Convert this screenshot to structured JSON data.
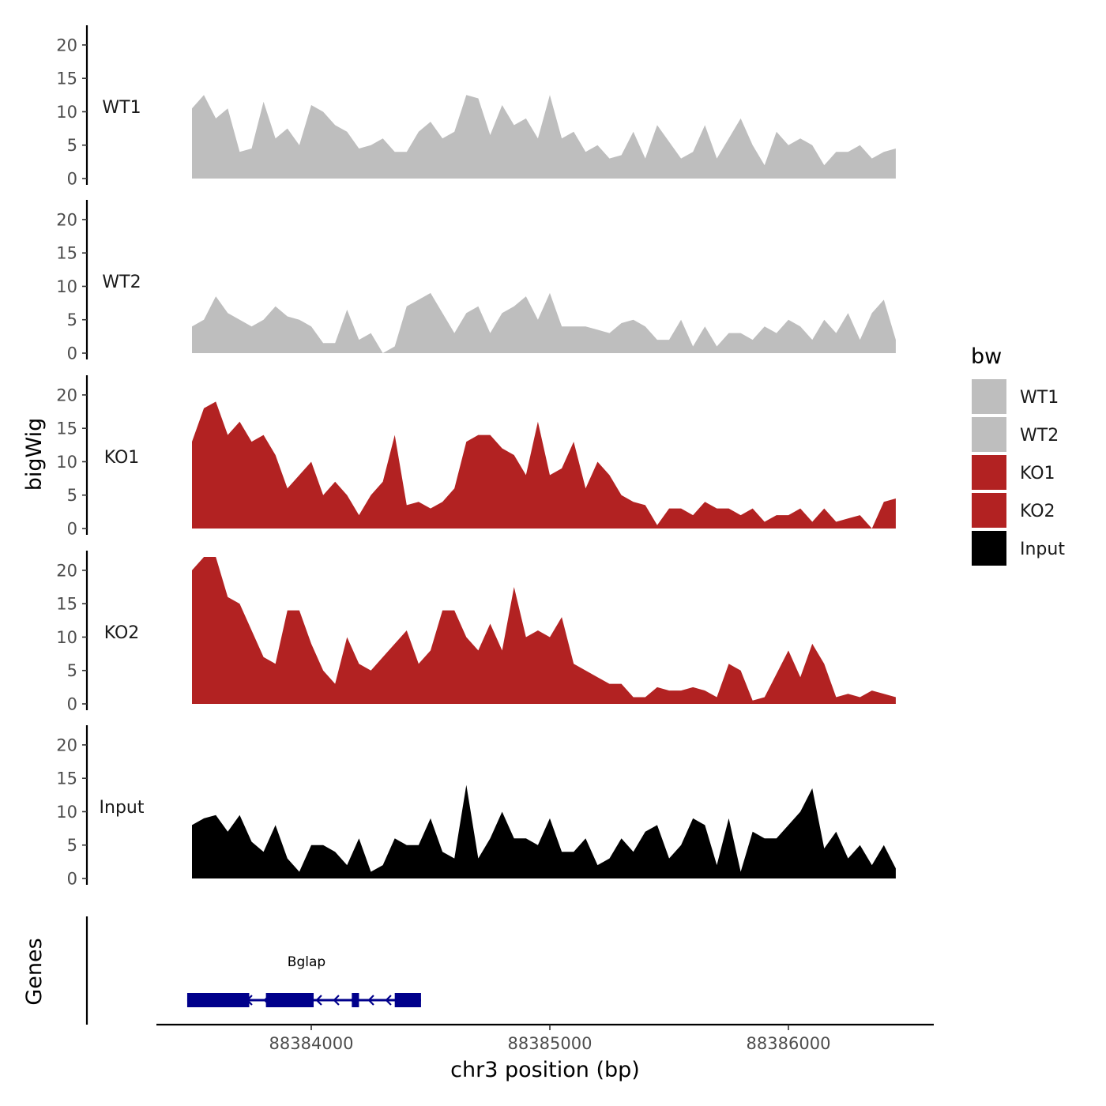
{
  "chart_data": {
    "type": "area",
    "xlabel": "chr3 position (bp)",
    "ylabel": "bigWig",
    "gene_track_label": "Genes",
    "x_range": [
      88383500,
      88386450
    ],
    "x_ticks": [
      {
        "value": 88384000,
        "label": "88384000"
      },
      {
        "value": 88385000,
        "label": "88385000"
      },
      {
        "value": 88386000,
        "label": "88386000"
      }
    ],
    "ylim": [
      0,
      22
    ],
    "y_ticks": [
      {
        "value": 0,
        "label": "0"
      },
      {
        "value": 5,
        "label": "5"
      },
      {
        "value": 10,
        "label": "10"
      },
      {
        "value": 15,
        "label": "15"
      },
      {
        "value": 20,
        "label": "20"
      }
    ],
    "x": [
      88383500,
      88383550,
      88383600,
      88383650,
      88383700,
      88383750,
      88383800,
      88383850,
      88383900,
      88383950,
      88384000,
      88384050,
      88384100,
      88384150,
      88384200,
      88384250,
      88384300,
      88384350,
      88384400,
      88384450,
      88384500,
      88384550,
      88384600,
      88384650,
      88384700,
      88384750,
      88384800,
      88384850,
      88384900,
      88384950,
      88385000,
      88385050,
      88385100,
      88385150,
      88385200,
      88385250,
      88385300,
      88385350,
      88385400,
      88385450,
      88385500,
      88385550,
      88385600,
      88385650,
      88385700,
      88385750,
      88385800,
      88385850,
      88385900,
      88385950,
      88386000,
      88386050,
      88386100,
      88386150,
      88386200,
      88386250,
      88386300,
      88386350,
      88386400,
      88386450
    ],
    "series": [
      {
        "name": "WT1",
        "color": "#bebebe",
        "values": [
          10.5,
          12.5,
          9,
          10.5,
          4,
          4.5,
          11.5,
          6,
          7.5,
          5,
          11,
          10,
          8,
          7,
          4.5,
          5,
          6,
          4,
          4,
          7,
          8.5,
          6,
          7,
          12.5,
          12,
          6.5,
          11,
          8,
          9,
          6,
          12.5,
          6,
          7,
          4,
          5,
          3,
          3.5,
          7,
          3,
          8,
          5.5,
          3,
          4,
          8,
          3,
          6,
          9,
          5,
          2,
          7,
          5,
          6,
          5,
          2,
          4,
          4,
          5,
          3,
          4,
          4.5
        ]
      },
      {
        "name": "WT2",
        "color": "#bebebe",
        "values": [
          4,
          5,
          8.5,
          6,
          5,
          4,
          5,
          7,
          5.5,
          5,
          4,
          1.5,
          1.5,
          6.5,
          2,
          3,
          0,
          1,
          7,
          8,
          9,
          6,
          3,
          6,
          7,
          3,
          6,
          7,
          8.5,
          5,
          9,
          4,
          4,
          4,
          3.5,
          3,
          4.5,
          5,
          4,
          2,
          2,
          5,
          1,
          4,
          1,
          3,
          3,
          2,
          4,
          3,
          5,
          4,
          2,
          5,
          3,
          6,
          2,
          6,
          8,
          2
        ]
      },
      {
        "name": "KO1",
        "color": "#b22222",
        "values": [
          13,
          18,
          19,
          14,
          16,
          13,
          14,
          11,
          6,
          8,
          10,
          5,
          7,
          5,
          2,
          5,
          7,
          14,
          3.5,
          4,
          3,
          4,
          6,
          13,
          14,
          14,
          12,
          11,
          8,
          16,
          8,
          9,
          13,
          6,
          10,
          8,
          5,
          4,
          3.5,
          0.5,
          3,
          3,
          2,
          4,
          3,
          3,
          2,
          3,
          1,
          2,
          2,
          3,
          1,
          3,
          1,
          1.5,
          2,
          0,
          4,
          4.5
        ]
      },
      {
        "name": "KO2",
        "color": "#b22222",
        "values": [
          20,
          22,
          22,
          16,
          15,
          11,
          7,
          6,
          14,
          14,
          9,
          5,
          3,
          10,
          6,
          5,
          7,
          9,
          11,
          6,
          8,
          14,
          14,
          10,
          8,
          12,
          8,
          17.5,
          10,
          11,
          10,
          13,
          6,
          5,
          4,
          3,
          3,
          1,
          1,
          2.5,
          2,
          2,
          2.5,
          2,
          1,
          6,
          5,
          0.5,
          1,
          4.5,
          8,
          4,
          9,
          6,
          1,
          1.5,
          1,
          2,
          1.5,
          1
        ]
      },
      {
        "name": "Input",
        "color": "#000000",
        "values": [
          8,
          9,
          9.5,
          7,
          9.5,
          5.5,
          4,
          8,
          3,
          1,
          5,
          5,
          4,
          2,
          6,
          1,
          2,
          6,
          5,
          5,
          9,
          4,
          3,
          14,
          3,
          6,
          10,
          6,
          6,
          5,
          9,
          4,
          4,
          6,
          2,
          3,
          6,
          4,
          7,
          8,
          3,
          5,
          9,
          8,
          2,
          9,
          1,
          7,
          6,
          6,
          8,
          10,
          13.5,
          4.5,
          7,
          3,
          5,
          2,
          5,
          1.5
        ]
      }
    ],
    "legend": {
      "title": "bw",
      "position": "right",
      "entries": [
        {
          "label": "WT1",
          "color": "#bebebe"
        },
        {
          "label": "WT2",
          "color": "#bebebe"
        },
        {
          "label": "KO1",
          "color": "#b22222"
        },
        {
          "label": "KO2",
          "color": "#b22222"
        },
        {
          "label": "Input",
          "color": "#000000"
        }
      ]
    },
    "gene": {
      "name": "Bglap",
      "color": "#00008b",
      "strand": "-",
      "start": 88383480,
      "end": 88384460,
      "exons": [
        [
          88383480,
          88383740
        ],
        [
          88383810,
          88384010
        ],
        [
          88384170,
          88384200
        ],
        [
          88384350,
          88384460
        ]
      ]
    },
    "grid": false
  }
}
